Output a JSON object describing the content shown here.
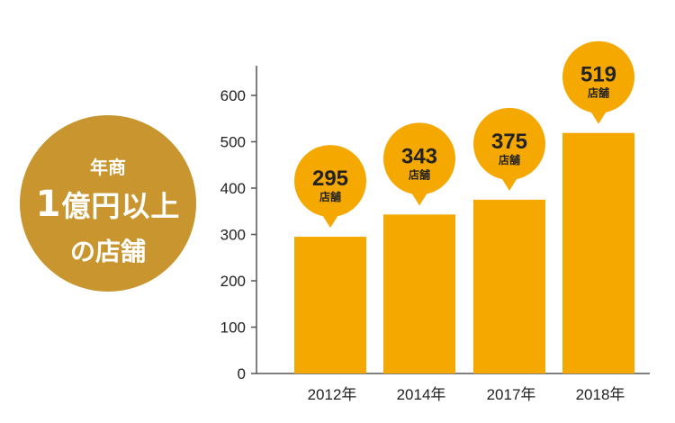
{
  "badge": {
    "line1": "年商",
    "line2_number": "1",
    "line2_text": "億円以上",
    "line3": "の店舗"
  },
  "colors": {
    "bar": "#f5a800",
    "badge": "#c9952f",
    "axis": "#555555",
    "label_text": "#222222"
  },
  "chart_data": {
    "type": "bar",
    "categories": [
      "2012",
      "2014",
      "2017",
      "2018"
    ],
    "category_suffix": "年",
    "values": [
      295,
      343,
      375,
      519
    ],
    "value_unit": "店舗",
    "title": "",
    "xlabel": "",
    "ylabel": "",
    "ylim": [
      0,
      650
    ],
    "yticks": [
      0,
      100,
      200,
      300,
      400,
      500,
      600
    ],
    "grid": false,
    "legend": "none"
  }
}
